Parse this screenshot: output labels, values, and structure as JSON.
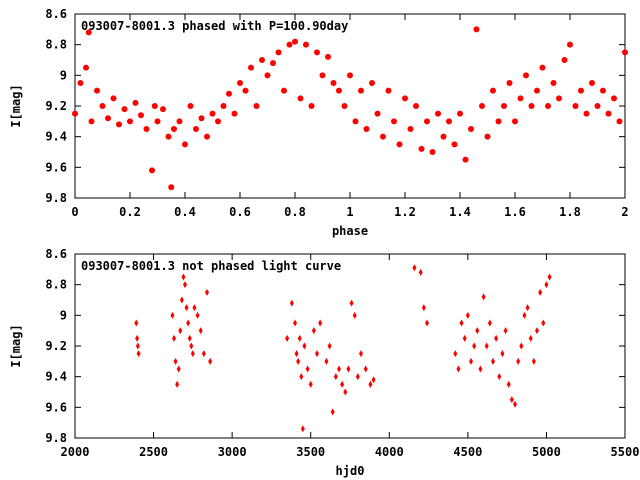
{
  "chart_data": [
    {
      "type": "scatter",
      "title": "093007-8001.3 phased with P=100.90day",
      "xlabel": "phase",
      "ylabel": "I[mag]",
      "xlim": [
        0,
        2
      ],
      "ylim": [
        9.8,
        8.6
      ],
      "y_inverted": true,
      "x_ticks": [
        "0",
        "0.2",
        "0.4",
        "0.6",
        "0.8",
        "1",
        "1.2",
        "1.4",
        "1.6",
        "1.8",
        "2"
      ],
      "y_ticks": [
        "8.6",
        "8.8",
        "9",
        "9.2",
        "9.4",
        "9.6",
        "9.8"
      ],
      "marker_color": "#ff0000",
      "marker": "filled-circle",
      "grid": false,
      "series": [
        {
          "x": [
            0.0,
            0.02,
            0.04,
            0.05,
            0.06,
            0.08,
            0.1,
            0.12,
            0.14,
            0.16,
            0.18,
            0.2,
            0.22,
            0.24,
            0.26,
            0.28,
            0.29,
            0.3,
            0.32,
            0.34,
            0.35,
            0.36,
            0.38,
            0.4,
            0.42,
            0.44,
            0.46,
            0.48,
            0.5,
            0.52,
            0.54,
            0.56,
            0.58,
            0.6,
            0.62,
            0.64,
            0.66,
            0.68,
            0.7,
            0.72,
            0.74,
            0.76,
            0.78,
            0.8,
            0.82,
            0.84,
            0.86,
            0.88,
            0.9,
            0.92,
            0.94,
            0.96,
            0.98,
            1.0,
            1.02,
            1.04,
            1.06,
            1.08,
            1.1,
            1.12,
            1.14,
            1.16,
            1.18,
            1.2,
            1.22,
            1.24,
            1.26,
            1.28,
            1.3,
            1.32,
            1.34,
            1.36,
            1.38,
            1.4,
            1.42,
            1.44,
            1.46,
            1.48,
            1.5,
            1.52,
            1.54,
            1.56,
            1.58,
            1.6,
            1.62,
            1.64,
            1.66,
            1.68,
            1.7,
            1.72,
            1.74,
            1.76,
            1.78,
            1.8,
            1.82,
            1.84,
            1.86,
            1.88,
            1.9,
            1.92,
            1.94,
            1.96,
            1.98,
            2.0
          ],
          "y": [
            9.25,
            9.05,
            8.95,
            8.72,
            9.3,
            9.1,
            9.2,
            9.28,
            9.15,
            9.32,
            9.22,
            9.3,
            9.18,
            9.26,
            9.35,
            9.62,
            9.2,
            9.3,
            9.22,
            9.4,
            9.73,
            9.35,
            9.3,
            9.45,
            9.2,
            9.35,
            9.28,
            9.4,
            9.25,
            9.3,
            9.2,
            9.12,
            9.25,
            9.05,
            9.1,
            8.95,
            9.2,
            8.9,
            9.0,
            8.92,
            8.85,
            9.1,
            8.8,
            8.78,
            9.15,
            8.8,
            9.2,
            8.85,
            9.0,
            8.88,
            9.05,
            9.1,
            9.2,
            9.0,
            9.3,
            9.1,
            9.35,
            9.05,
            9.25,
            9.4,
            9.1,
            9.3,
            9.45,
            9.15,
            9.35,
            9.2,
            9.48,
            9.3,
            9.5,
            9.25,
            9.4,
            9.3,
            9.45,
            9.25,
            9.55,
            9.35,
            8.7,
            9.2,
            9.4,
            9.1,
            9.3,
            9.2,
            9.05,
            9.3,
            9.15,
            9.0,
            9.2,
            9.1,
            8.95,
            9.2,
            9.05,
            9.15,
            8.9,
            8.8,
            9.2,
            9.1,
            9.25,
            9.05,
            9.2,
            9.1,
            9.25,
            9.15,
            9.3,
            8.85
          ]
        }
      ]
    },
    {
      "type": "scatter",
      "title": "093007-8001.3 not phased light curve",
      "xlabel": "hjd0",
      "ylabel": "I[mag]",
      "xlim": [
        2000,
        5500
      ],
      "ylim": [
        9.8,
        8.6
      ],
      "y_inverted": true,
      "x_ticks": [
        "2000",
        "2500",
        "3000",
        "3500",
        "4000",
        "4500",
        "5000",
        "5500"
      ],
      "y_ticks": [
        "8.6",
        "8.8",
        "9",
        "9.2",
        "9.4",
        "9.6",
        "9.8"
      ],
      "marker_color": "#ff0000",
      "marker": "filled-diamond",
      "grid": false,
      "series": [
        {
          "x": [
            2390,
            2395,
            2400,
            2405,
            2620,
            2630,
            2640,
            2650,
            2660,
            2670,
            2680,
            2690,
            2700,
            2710,
            2720,
            2730,
            2740,
            2750,
            2760,
            2780,
            2800,
            2820,
            2840,
            2860,
            3350,
            3380,
            3400,
            3410,
            3420,
            3430,
            3440,
            3450,
            3460,
            3480,
            3500,
            3520,
            3540,
            3560,
            3600,
            3620,
            3640,
            3660,
            3680,
            3700,
            3720,
            3740,
            3760,
            3780,
            3800,
            3820,
            3850,
            3880,
            3900,
            4160,
            4200,
            4220,
            4240,
            4420,
            4440,
            4460,
            4480,
            4500,
            4520,
            4540,
            4560,
            4580,
            4600,
            4620,
            4640,
            4660,
            4680,
            4700,
            4720,
            4740,
            4760,
            4780,
            4800,
            4820,
            4840,
            4860,
            4880,
            4900,
            4920,
            4940,
            4960,
            4980,
            5000,
            5020
          ],
          "y": [
            9.05,
            9.15,
            9.2,
            9.25,
            9.0,
            9.15,
            9.3,
            9.45,
            9.35,
            9.1,
            8.9,
            8.75,
            8.8,
            8.95,
            9.05,
            9.15,
            9.2,
            9.25,
            8.95,
            9.0,
            9.1,
            9.25,
            8.85,
            9.3,
            9.15,
            8.92,
            9.05,
            9.25,
            9.3,
            9.15,
            9.4,
            9.74,
            9.2,
            9.35,
            9.45,
            9.1,
            9.25,
            9.05,
            9.3,
            9.2,
            9.63,
            9.4,
            9.35,
            9.45,
            9.5,
            9.35,
            8.92,
            9.0,
            9.4,
            9.25,
            9.35,
            9.45,
            9.42,
            8.69,
            8.72,
            8.95,
            9.05,
            9.25,
            9.35,
            9.05,
            9.15,
            9.0,
            9.3,
            9.2,
            9.1,
            9.35,
            8.88,
            9.2,
            9.05,
            9.3,
            9.15,
            9.4,
            9.25,
            9.1,
            9.45,
            9.55,
            9.58,
            9.3,
            9.2,
            9.0,
            8.95,
            9.15,
            9.3,
            9.1,
            8.85,
            9.05,
            8.8,
            8.75
          ]
        }
      ]
    }
  ]
}
